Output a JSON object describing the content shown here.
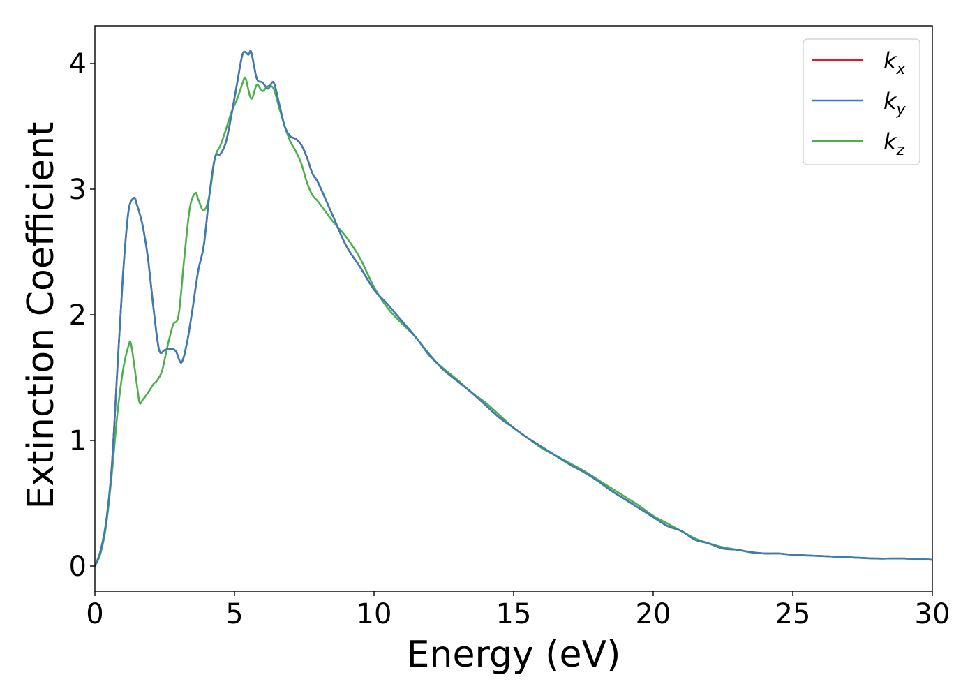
{
  "chart_data": {
    "type": "line",
    "title": "",
    "xlabel": "Energy (eV)",
    "ylabel": "Extinction Coefficient",
    "xlim": [
      0,
      30
    ],
    "ylim": [
      -0.2,
      4.3
    ],
    "xticks": [
      0,
      5,
      10,
      15,
      20,
      25,
      30
    ],
    "yticks": [
      0,
      1,
      2,
      3,
      4
    ],
    "grid": false,
    "legend_position": "top-right",
    "series": [
      {
        "name": "k_x",
        "label_base": "k",
        "label_sub": "x",
        "color": "#e41a1c",
        "x": [
          0,
          0.2,
          0.4,
          0.6,
          0.8,
          1.0,
          1.2,
          1.4,
          1.5,
          1.7,
          1.9,
          2.1,
          2.3,
          2.5,
          2.7,
          2.9,
          3.1,
          3.3,
          3.5,
          3.7,
          3.9,
          4.1,
          4.3,
          4.5,
          4.7,
          4.9,
          5.1,
          5.3,
          5.5,
          5.6,
          5.8,
          6.0,
          6.2,
          6.4,
          6.6,
          6.8,
          7.0,
          7.2,
          7.4,
          7.6,
          7.8,
          8.0,
          8.5,
          9.0,
          9.5,
          10.0,
          10.5,
          11.0,
          11.5,
          12.0,
          12.5,
          13.0,
          13.5,
          14.0,
          14.5,
          15.0,
          15.5,
          16.0,
          16.5,
          17.0,
          17.5,
          18.0,
          18.5,
          19.0,
          19.5,
          20.0,
          20.5,
          21.0,
          21.5,
          22.0,
          22.5,
          23.0,
          23.5,
          24.0,
          24.5,
          25.0,
          26.0,
          27.0,
          28.0,
          29.0,
          30.0
        ],
        "y": [
          0,
          0.12,
          0.35,
          0.78,
          1.55,
          2.3,
          2.82,
          2.93,
          2.88,
          2.72,
          2.45,
          2.05,
          1.72,
          1.72,
          1.73,
          1.71,
          1.62,
          1.78,
          2.05,
          2.35,
          2.55,
          2.95,
          3.25,
          3.28,
          3.38,
          3.6,
          3.85,
          4.08,
          4.07,
          4.09,
          3.88,
          3.85,
          3.8,
          3.85,
          3.68,
          3.5,
          3.42,
          3.4,
          3.35,
          3.25,
          3.12,
          3.05,
          2.8,
          2.55,
          2.38,
          2.2,
          2.08,
          1.95,
          1.82,
          1.68,
          1.56,
          1.47,
          1.38,
          1.28,
          1.18,
          1.1,
          1.02,
          0.95,
          0.88,
          0.81,
          0.75,
          0.68,
          0.6,
          0.53,
          0.46,
          0.39,
          0.32,
          0.28,
          0.21,
          0.18,
          0.14,
          0.13,
          0.11,
          0.1,
          0.1,
          0.09,
          0.08,
          0.07,
          0.06,
          0.06,
          0.05
        ]
      },
      {
        "name": "k_y",
        "label_base": "k",
        "label_sub": "y",
        "color": "#377eb8",
        "x": [
          0,
          0.2,
          0.4,
          0.6,
          0.8,
          1.0,
          1.2,
          1.4,
          1.5,
          1.7,
          1.9,
          2.1,
          2.3,
          2.5,
          2.7,
          2.9,
          3.1,
          3.3,
          3.5,
          3.7,
          3.9,
          4.1,
          4.3,
          4.5,
          4.7,
          4.9,
          5.1,
          5.3,
          5.5,
          5.6,
          5.8,
          6.0,
          6.2,
          6.4,
          6.6,
          6.8,
          7.0,
          7.2,
          7.4,
          7.6,
          7.8,
          8.0,
          8.5,
          9.0,
          9.5,
          10.0,
          10.5,
          11.0,
          11.5,
          12.0,
          12.5,
          13.0,
          13.5,
          14.0,
          14.5,
          15.0,
          15.5,
          16.0,
          16.5,
          17.0,
          17.5,
          18.0,
          18.5,
          19.0,
          19.5,
          20.0,
          20.5,
          21.0,
          21.5,
          22.0,
          22.5,
          23.0,
          23.5,
          24.0,
          24.5,
          25.0,
          26.0,
          27.0,
          28.0,
          29.0,
          30.0
        ],
        "y": [
          0,
          0.12,
          0.35,
          0.78,
          1.55,
          2.3,
          2.82,
          2.93,
          2.88,
          2.72,
          2.45,
          2.05,
          1.72,
          1.72,
          1.73,
          1.71,
          1.62,
          1.78,
          2.05,
          2.35,
          2.55,
          2.95,
          3.25,
          3.28,
          3.38,
          3.6,
          3.85,
          4.08,
          4.07,
          4.09,
          3.88,
          3.85,
          3.8,
          3.85,
          3.68,
          3.5,
          3.42,
          3.4,
          3.35,
          3.25,
          3.12,
          3.05,
          2.8,
          2.55,
          2.38,
          2.2,
          2.08,
          1.95,
          1.82,
          1.68,
          1.56,
          1.47,
          1.38,
          1.28,
          1.18,
          1.1,
          1.02,
          0.95,
          0.88,
          0.81,
          0.75,
          0.68,
          0.6,
          0.53,
          0.46,
          0.39,
          0.32,
          0.28,
          0.21,
          0.18,
          0.14,
          0.13,
          0.11,
          0.1,
          0.1,
          0.09,
          0.08,
          0.07,
          0.06,
          0.06,
          0.05
        ]
      },
      {
        "name": "k_z",
        "label_base": "k",
        "label_sub": "z",
        "color": "#4daf4a",
        "x": [
          0,
          0.2,
          0.4,
          0.6,
          0.8,
          1.0,
          1.2,
          1.3,
          1.5,
          1.6,
          1.7,
          1.9,
          2.1,
          2.2,
          2.4,
          2.6,
          2.8,
          3.0,
          3.2,
          3.4,
          3.6,
          3.7,
          3.9,
          4.1,
          4.3,
          4.5,
          4.7,
          4.9,
          5.1,
          5.3,
          5.4,
          5.6,
          5.8,
          6.0,
          6.2,
          6.4,
          6.6,
          6.8,
          7.0,
          7.2,
          7.4,
          7.6,
          7.8,
          8.0,
          8.5,
          9.0,
          9.5,
          10.0,
          10.5,
          11.0,
          11.5,
          12.0,
          12.5,
          13.0,
          13.5,
          14.0,
          14.5,
          15.0,
          15.5,
          16.0,
          16.5,
          17.0,
          17.5,
          18.0,
          18.5,
          19.0,
          19.5,
          20.0,
          20.5,
          21.0,
          21.5,
          22.0,
          22.5,
          23.0,
          23.5,
          24.0,
          24.5,
          25.0,
          26.0,
          27.0,
          28.0,
          29.0,
          30.0
        ],
        "y": [
          0,
          0.1,
          0.32,
          0.72,
          1.2,
          1.55,
          1.75,
          1.76,
          1.45,
          1.3,
          1.32,
          1.38,
          1.45,
          1.47,
          1.55,
          1.75,
          1.92,
          2.0,
          2.45,
          2.85,
          2.97,
          2.92,
          2.83,
          2.95,
          3.25,
          3.35,
          3.48,
          3.62,
          3.72,
          3.85,
          3.88,
          3.72,
          3.83,
          3.78,
          3.82,
          3.8,
          3.65,
          3.5,
          3.38,
          3.3,
          3.2,
          3.05,
          2.95,
          2.9,
          2.75,
          2.62,
          2.45,
          2.22,
          2.05,
          1.93,
          1.82,
          1.67,
          1.57,
          1.48,
          1.38,
          1.3,
          1.2,
          1.1,
          1.02,
          0.94,
          0.88,
          0.82,
          0.76,
          0.69,
          0.62,
          0.55,
          0.48,
          0.4,
          0.34,
          0.28,
          0.22,
          0.18,
          0.15,
          0.13,
          0.11,
          0.1,
          0.1,
          0.09,
          0.08,
          0.07,
          0.06,
          0.06,
          0.05
        ]
      }
    ]
  }
}
